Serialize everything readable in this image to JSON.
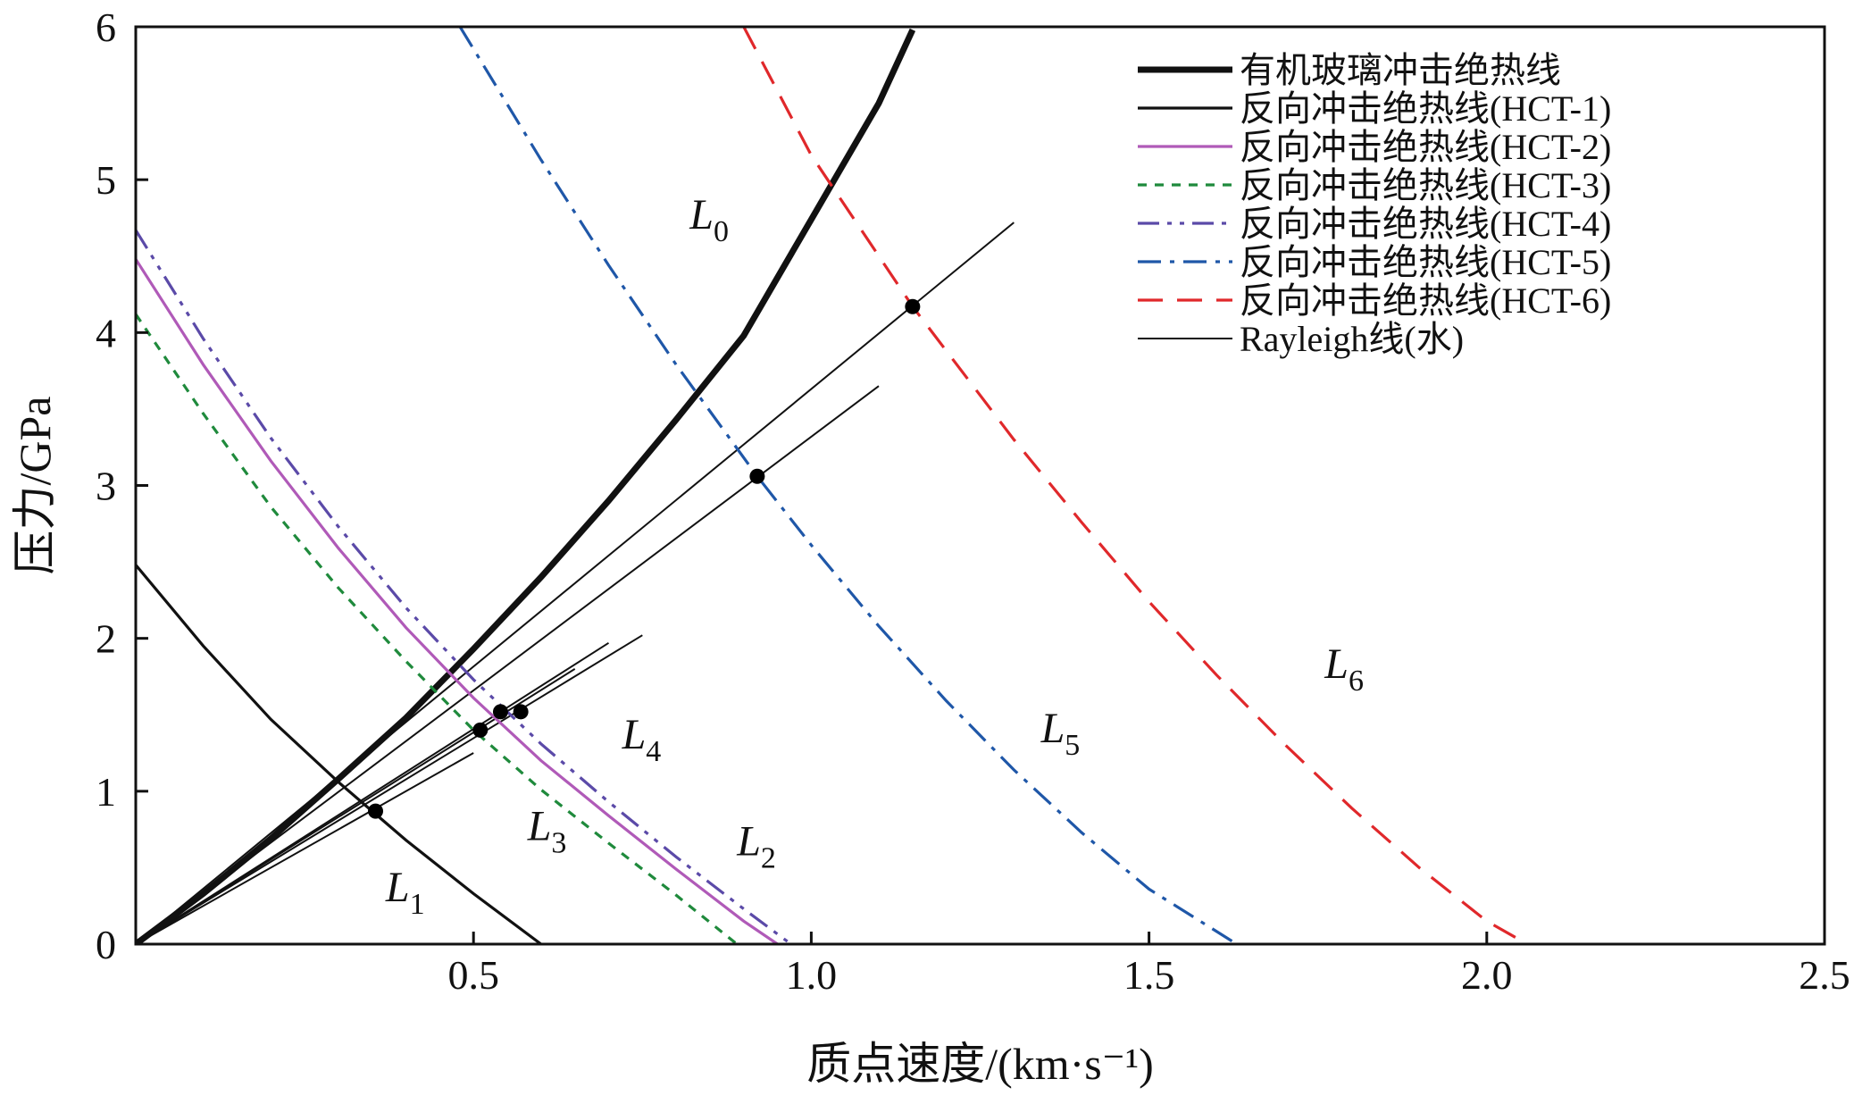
{
  "chart_data": {
    "type": "line",
    "xlabel": "质点速度/(km·s⁻¹)",
    "ylabel": "压力/GPa",
    "xlim": [
      0,
      2.5
    ],
    "ylim": [
      0,
      6
    ],
    "x_ticks": [
      {
        "value": 0.5,
        "label": "0.5"
      },
      {
        "value": 1.0,
        "label": "1.0"
      },
      {
        "value": 1.5,
        "label": "1.5"
      },
      {
        "value": 2.0,
        "label": "2.0"
      },
      {
        "value": 2.5,
        "label": "2.5"
      }
    ],
    "y_ticks": [
      {
        "value": 0,
        "label": "0"
      },
      {
        "value": 1,
        "label": "1"
      },
      {
        "value": 2,
        "label": "2"
      },
      {
        "value": 3,
        "label": "3"
      },
      {
        "value": 4,
        "label": "4"
      },
      {
        "value": 5,
        "label": "5"
      },
      {
        "value": 6,
        "label": "6"
      }
    ],
    "grid": false,
    "legend_position": "top-right",
    "series": [
      {
        "key": "L0",
        "name": "有机玻璃冲击绝热线",
        "color": "#111111",
        "dash": "solid",
        "width": 7,
        "x": [
          0,
          0.1,
          0.2,
          0.3,
          0.4,
          0.5,
          0.6,
          0.7,
          0.8,
          0.9,
          1.0,
          1.1,
          1.15
        ],
        "y": [
          0,
          0.33,
          0.69,
          1.08,
          1.48,
          1.93,
          2.4,
          2.9,
          3.43,
          3.98,
          4.74,
          5.5,
          5.98
        ]
      },
      {
        "key": "L1",
        "name": "反向冲击绝热线(HCT-1)",
        "color": "#111111",
        "dash": "solid",
        "width": 3.2,
        "x": [
          0,
          0.1,
          0.2,
          0.3,
          0.35,
          0.4,
          0.5,
          0.6
        ],
        "y": [
          2.48,
          1.95,
          1.47,
          1.06,
          0.87,
          0.68,
          0.33,
          0
        ]
      },
      {
        "key": "L2",
        "name": "反向冲击绝热线(HCT-2)",
        "color": "#b05ab8",
        "dash": "solid",
        "width": 3.2,
        "x": [
          0,
          0.1,
          0.2,
          0.3,
          0.4,
          0.5,
          0.6,
          0.7,
          0.8,
          0.9,
          0.95
        ],
        "y": [
          4.48,
          3.79,
          3.16,
          2.59,
          2.07,
          1.61,
          1.2,
          0.84,
          0.49,
          0.15,
          0
        ]
      },
      {
        "key": "L3",
        "name": "反向冲击绝热线(HCT-3)",
        "color": "#1f8a3c",
        "dash": "dot",
        "width": 3.2,
        "x": [
          0,
          0.1,
          0.2,
          0.3,
          0.4,
          0.5,
          0.6,
          0.7,
          0.8,
          0.89
        ],
        "y": [
          4.12,
          3.47,
          2.86,
          2.33,
          1.85,
          1.4,
          1.01,
          0.66,
          0.32,
          0
        ]
      },
      {
        "key": "L4",
        "name": "反向冲击绝热线(HCT-4)",
        "color": "#5b4aa8",
        "dash": "dashdotdot",
        "width": 3.2,
        "x": [
          0,
          0.1,
          0.2,
          0.3,
          0.4,
          0.5,
          0.6,
          0.7,
          0.8,
          0.9,
          0.97
        ],
        "y": [
          4.67,
          3.96,
          3.31,
          2.73,
          2.2,
          1.73,
          1.31,
          0.93,
          0.57,
          0.23,
          0
        ]
      },
      {
        "key": "L5",
        "name": "反向冲击绝热线(HCT-5)",
        "color": "#1f57a8",
        "dash": "dashdot",
        "width": 3.2,
        "x": [
          0.48,
          0.6,
          0.7,
          0.8,
          0.92,
          1.0,
          1.1,
          1.2,
          1.3,
          1.4,
          1.5,
          1.63
        ],
        "y": [
          6.0,
          5.13,
          4.44,
          3.79,
          3.06,
          2.61,
          2.08,
          1.59,
          1.14,
          0.73,
          0.36,
          0
        ]
      },
      {
        "key": "L6",
        "name": "反向冲击绝热线(HCT-6)",
        "color": "#e0282b",
        "dash": "dash",
        "width": 3.2,
        "x": [
          0.9,
          1.0,
          1.15,
          1.3,
          1.4,
          1.5,
          1.6,
          1.7,
          1.8,
          1.9,
          2.0,
          2.06
        ],
        "y": [
          6.0,
          5.16,
          4.17,
          3.3,
          2.76,
          2.24,
          1.76,
          1.31,
          0.89,
          0.5,
          0.15,
          0
        ]
      }
    ],
    "rayleigh": {
      "name": "Rayleigh线(水)",
      "color": "#111111",
      "width": 2,
      "lines": [
        {
          "x": [
            0,
            0.5
          ],
          "y": [
            0,
            1.25
          ]
        },
        {
          "x": [
            0,
            0.65
          ],
          "y": [
            0,
            1.8
          ]
        },
        {
          "x": [
            0,
            0.7
          ],
          "y": [
            0,
            1.97
          ]
        },
        {
          "x": [
            0,
            0.75
          ],
          "y": [
            0,
            2.02
          ]
        },
        {
          "x": [
            0,
            1.1
          ],
          "y": [
            0,
            3.65
          ]
        },
        {
          "x": [
            0,
            1.3
          ],
          "y": [
            0,
            4.72
          ]
        }
      ]
    },
    "intersections": [
      {
        "x": 0.355,
        "y": 0.87
      },
      {
        "x": 0.51,
        "y": 1.4
      },
      {
        "x": 0.54,
        "y": 1.52
      },
      {
        "x": 0.57,
        "y": 1.52
      },
      {
        "x": 0.92,
        "y": 3.06
      },
      {
        "x": 1.15,
        "y": 4.17
      }
    ],
    "curve_labels": [
      {
        "main": "L",
        "sub": "0",
        "x": 0.82,
        "y": 4.68
      },
      {
        "main": "L",
        "sub": "1",
        "x": 0.37,
        "y": 0.28
      },
      {
        "main": "L",
        "sub": "2",
        "x": 0.89,
        "y": 0.58
      },
      {
        "main": "L",
        "sub": "3",
        "x": 0.58,
        "y": 0.68
      },
      {
        "main": "L",
        "sub": "4",
        "x": 0.72,
        "y": 1.28
      },
      {
        "main": "L",
        "sub": "5",
        "x": 1.34,
        "y": 1.32
      },
      {
        "main": "L",
        "sub": "6",
        "x": 1.76,
        "y": 1.74
      }
    ]
  }
}
